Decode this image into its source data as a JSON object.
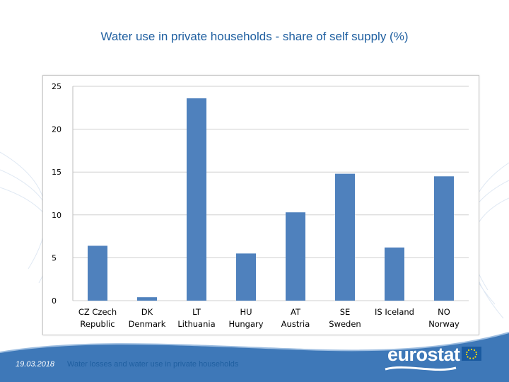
{
  "slide": {
    "title": "Water use in private households - share of self supply (%)",
    "footer_date": "19.03.2018",
    "footer_text": "Water losses and water use in private households",
    "logo_text": "eurostat",
    "colors": {
      "title": "#1f5fa0",
      "bar": "#4f81bd",
      "footer_band": "#3e78b8"
    }
  },
  "chart_data": {
    "type": "bar",
    "categories": [
      [
        "CZ Czech",
        "Republic"
      ],
      [
        "DK",
        "Denmark"
      ],
      [
        "LT",
        "Lithuania"
      ],
      [
        "HU",
        "Hungary"
      ],
      [
        "AT",
        "Austria"
      ],
      [
        "SE",
        "Sweden"
      ],
      [
        "IS Iceland",
        ""
      ],
      [
        "NO",
        "Norway"
      ]
    ],
    "values": [
      6.4,
      0.4,
      23.6,
      5.5,
      10.3,
      14.8,
      6.2,
      14.5
    ],
    "ylim": [
      0,
      25
    ],
    "yticks": [
      "0",
      "5",
      "10",
      "15",
      "20",
      "25"
    ],
    "grid": true,
    "legend": "none"
  }
}
